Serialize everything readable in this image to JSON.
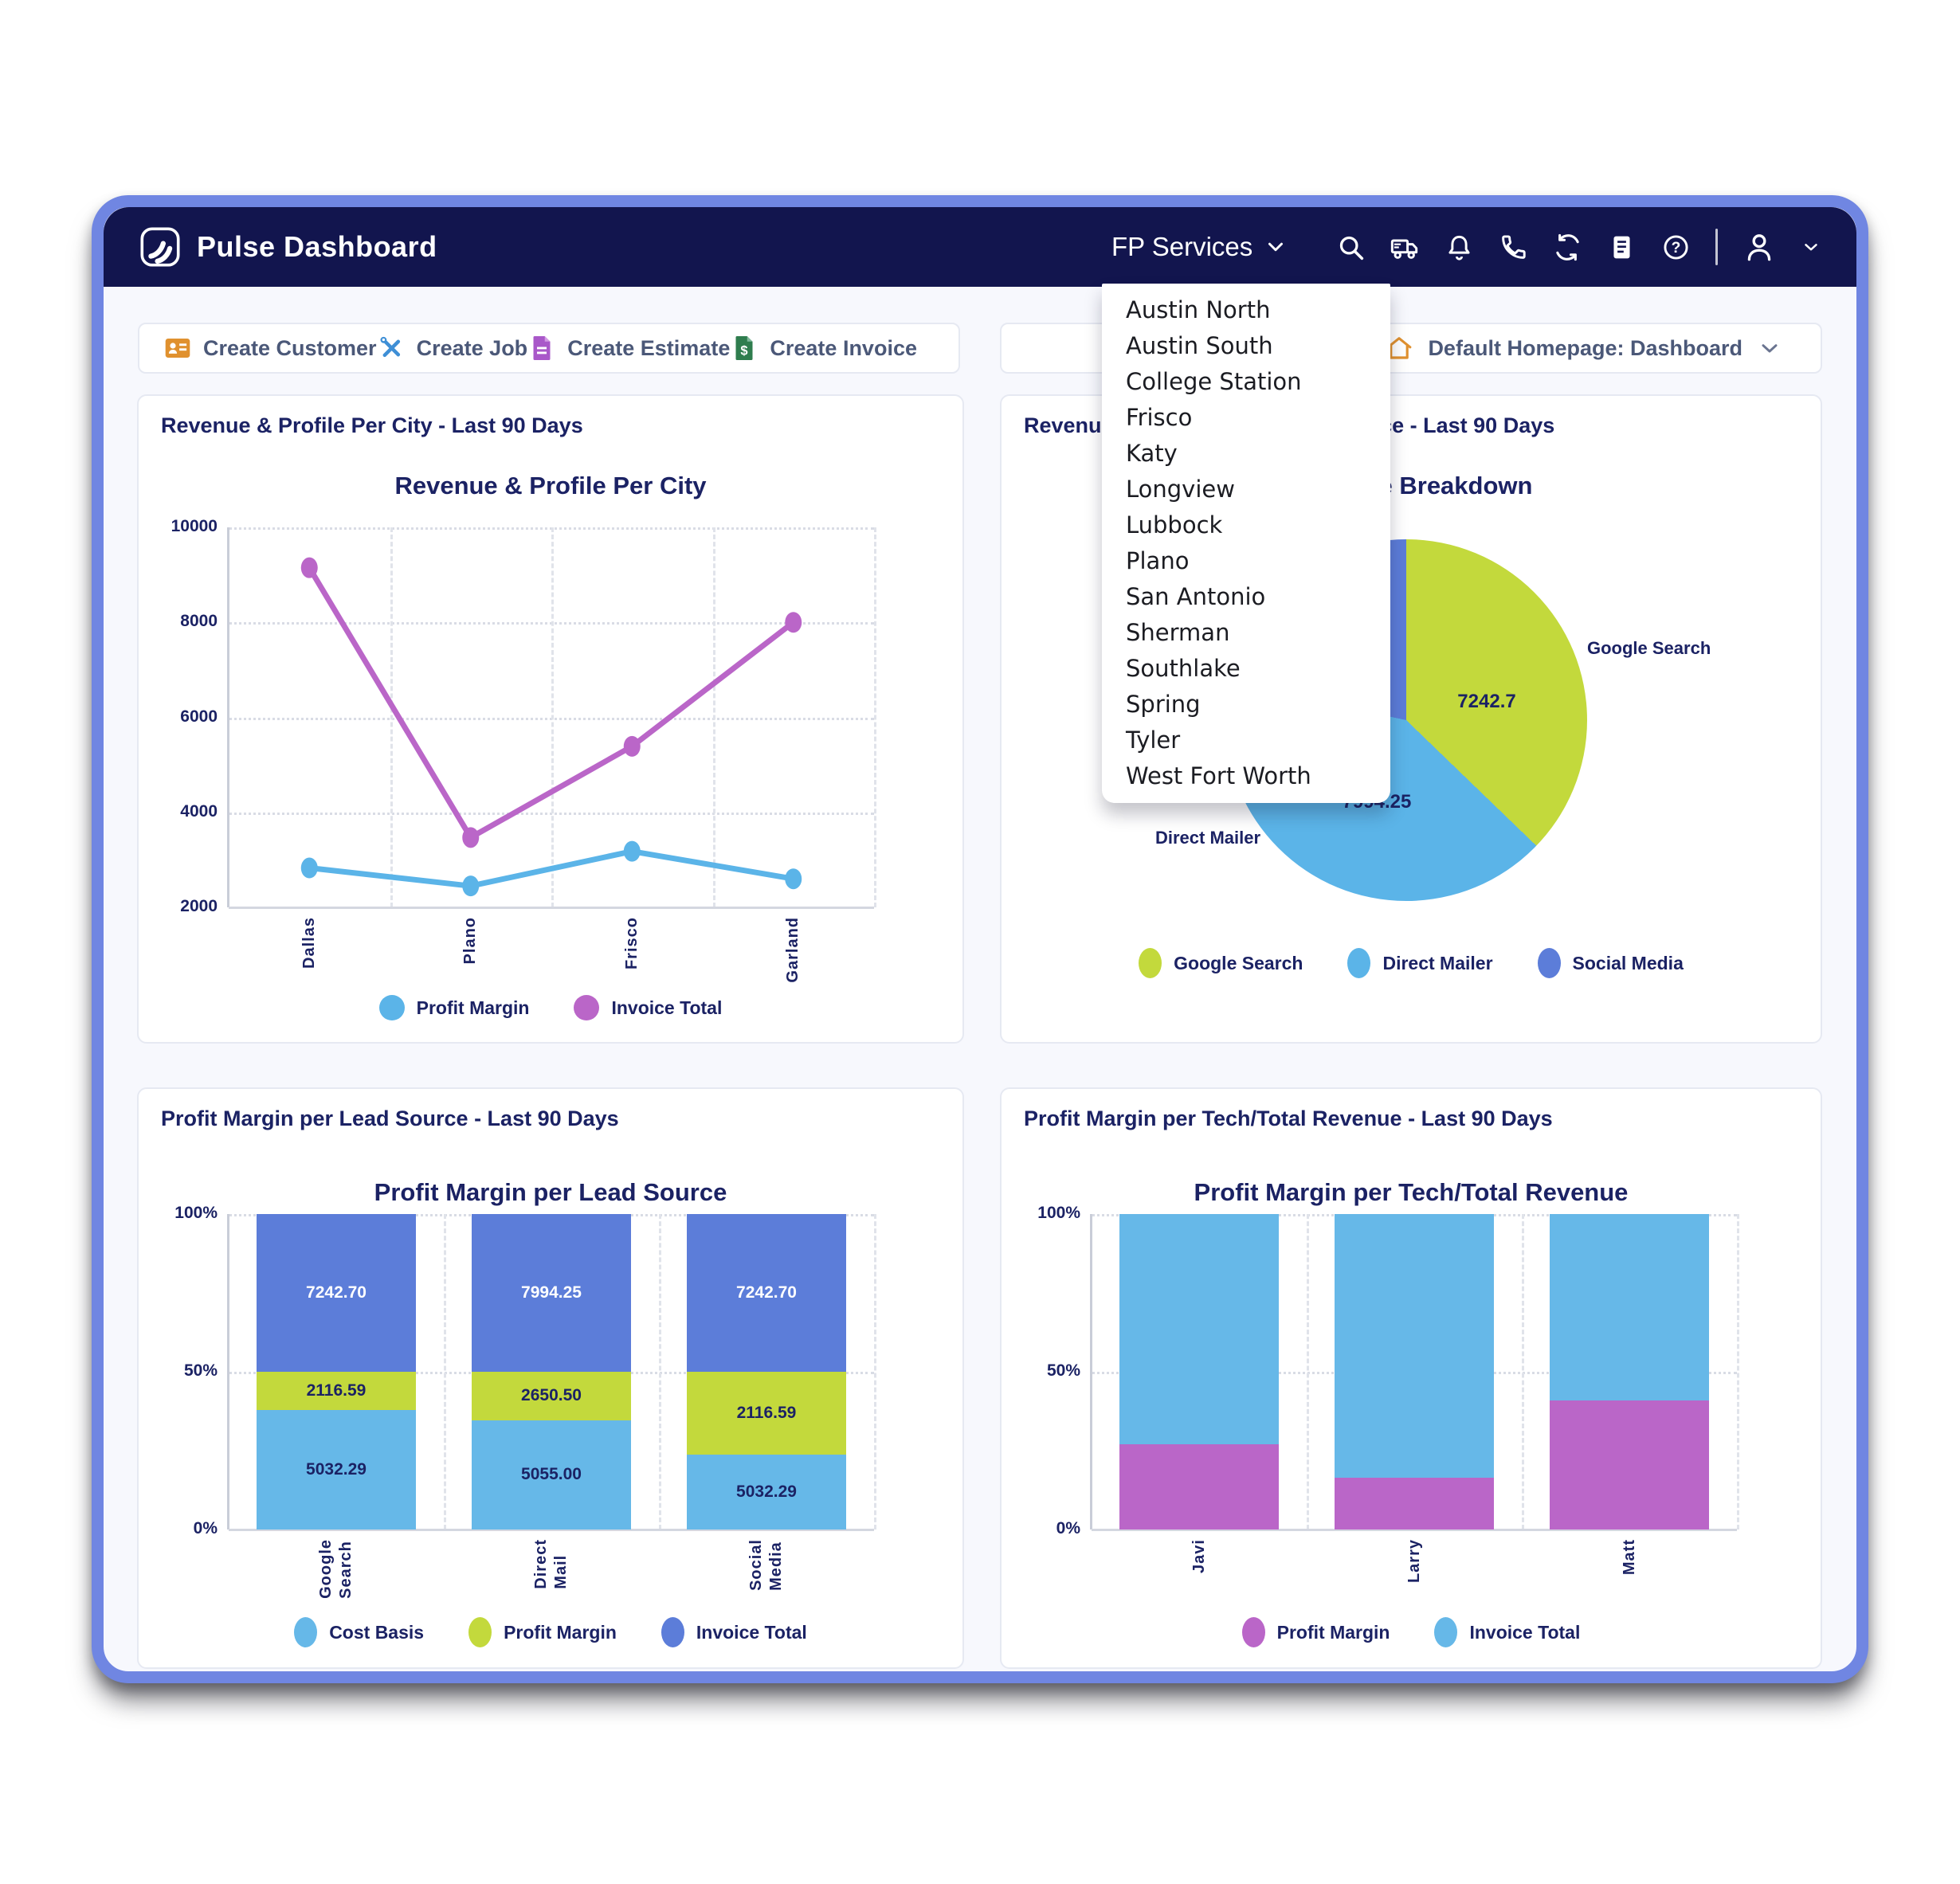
{
  "nav": {
    "brand": "Pulse Dashboard",
    "org_selector": "FP Services",
    "icons": [
      "search-icon",
      "truck-icon",
      "bell-icon",
      "phone-icon",
      "refresh-icon",
      "document-icon",
      "help-icon",
      "user-icon",
      "chevron-down-icon"
    ]
  },
  "org_dropdown": {
    "items": [
      "Austin North",
      "Austin South",
      "College Station",
      "Frisco",
      "Katy",
      "Longview",
      "Lubbock",
      "Plano",
      "San Antonio",
      "Sherman",
      "Southlake",
      "Spring",
      "Tyler",
      "West Fort Worth"
    ]
  },
  "actions": {
    "customer": "Create Customer",
    "job": "Create Job",
    "estimate": "Create Estimate",
    "invoice": "Create Invoice"
  },
  "homepage": {
    "label": "Default Homepage: Dashboard"
  },
  "cards": {
    "city": {
      "header": "Revenue & Profile Per City - Last 90 Days"
    },
    "breakdown": {
      "header": "Revenue Breakdown By Lead Source - Last 90 Days"
    },
    "lead": {
      "header": "Profit Margin per Lead Source - Last 90 Days"
    },
    "tech": {
      "header": "Profit Margin per Tech/Total Revenue - Last 90 Days"
    }
  },
  "colors": {
    "navy_bg": "#12154e",
    "text_navy": "#1b2264",
    "slate": "#4b5878",
    "sky": "#5bb4e8",
    "orchid": "#ba66c8",
    "lime": "#c3d93c",
    "royal": "#5c7dd9",
    "window_border": "#7086e2",
    "orange": "#e0912f",
    "job_blue": "#3f8fd6",
    "estimate_purple": "#a958c9",
    "invoice_green": "#2f7d4e"
  },
  "chart_data": [
    {
      "type": "line",
      "title": "Revenue & Profile Per City",
      "categories": [
        "Dallas",
        "Plano",
        "Frisco",
        "Garland"
      ],
      "series": [
        {
          "name": "Profit Margin",
          "color": "#5bb4e8",
          "values": [
            2830,
            2450,
            3180,
            2600
          ]
        },
        {
          "name": "Invoice Total",
          "color": "#ba66c8",
          "values": [
            9150,
            3470,
            5390,
            8000
          ]
        }
      ],
      "ylim": [
        2000,
        10000
      ],
      "yticks": [
        10000,
        8000,
        6000,
        4000,
        2000
      ],
      "grid": "dotted",
      "legend_position": "bottom"
    },
    {
      "type": "pie",
      "title": "Revenue Breakdown",
      "slices": [
        {
          "label": "Google Search",
          "value": 7242.7,
          "value_label": "7242.7",
          "angle_deg": 134,
          "color": "#c3d93c"
        },
        {
          "label": "Direct Mailer",
          "value": 7994.25,
          "value_label": "7994.25",
          "angle_deg": 148,
          "color": "#5bb4e8"
        },
        {
          "label": "Social Media",
          "value": null,
          "value_label": "",
          "angle_deg": 78,
          "color": "#5c7dd9"
        }
      ],
      "legend_position": "bottom"
    },
    {
      "type": "bar",
      "title": "Profit Margin per Lead Source",
      "categories": [
        [
          "Google",
          "Search"
        ],
        [
          "Direct",
          "Mail"
        ],
        [
          "Social",
          "Media"
        ]
      ],
      "stacked": true,
      "yticks": [
        "100%",
        "50%",
        "0%"
      ],
      "series": [
        {
          "name": "Cost Basis",
          "color": "#66b8e8",
          "label_color": "#1b2264",
          "values": [
            5032.29,
            5055.0,
            5032.29
          ],
          "value_labels": [
            "5032.29",
            "5055.00",
            "5032.29"
          ],
          "pct": [
            37.8,
            34.7,
            23.8
          ]
        },
        {
          "name": "Profit Margin",
          "color": "#c3d93c",
          "label_color": "#1b2264",
          "values": [
            2116.59,
            2650.5,
            2116.59
          ],
          "value_labels": [
            "2116.59",
            "2650.50",
            "2116.59"
          ],
          "pct": [
            12.2,
            15.3,
            26.2
          ]
        },
        {
          "name": "Invoice Total",
          "color": "#5c7dd9",
          "label_color": "#ffffff",
          "values": [
            7242.7,
            7994.25,
            7242.7
          ],
          "value_labels": [
            "7242.70",
            "7994.25",
            "7242.70"
          ],
          "pct": [
            50,
            50,
            50
          ]
        }
      ],
      "legend_position": "bottom"
    },
    {
      "type": "bar",
      "title": "Profit Margin per Tech/Total Revenue",
      "categories": [
        [
          "Javi"
        ],
        [
          "Larry"
        ],
        [
          "Matt"
        ]
      ],
      "stacked": true,
      "yticks": [
        "100%",
        "50%",
        "0%"
      ],
      "series": [
        {
          "name": "Profit Margin",
          "color": "#ba66c8",
          "label_color": "#1b2264",
          "values": [
            27,
            16.5,
            41
          ],
          "value_labels": [
            "",
            "",
            ""
          ],
          "pct": [
            27,
            16.5,
            41
          ]
        },
        {
          "name": "Invoice Total",
          "color": "#66b8e8",
          "label_color": "#1b2264",
          "values": [
            73,
            83.5,
            59
          ],
          "value_labels": [
            "",
            "",
            ""
          ],
          "pct": [
            73,
            83.5,
            59
          ]
        }
      ],
      "legend_position": "bottom"
    }
  ]
}
